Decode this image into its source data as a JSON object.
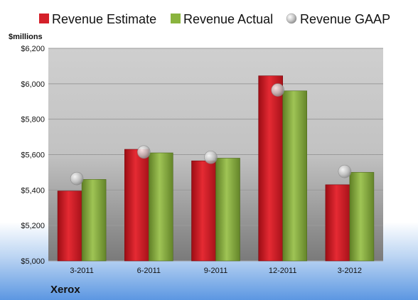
{
  "chart_data": {
    "type": "bar",
    "categories": [
      "3-2011",
      "6-2011",
      "9-2011",
      "12-2011",
      "3-2012"
    ],
    "series": [
      {
        "name": "Revenue Estimate",
        "kind": "bar",
        "color": "#e0202a",
        "values": [
          5395,
          5630,
          5565,
          6045,
          5430
        ]
      },
      {
        "name": "Revenue Actual",
        "kind": "bar",
        "color": "#8ab43e",
        "values": [
          5460,
          5610,
          5580,
          5960,
          5500
        ]
      },
      {
        "name": "Revenue GAAP",
        "kind": "marker",
        "color": "#b8b8b8",
        "values": [
          5465,
          5615,
          5585,
          5965,
          5505
        ]
      }
    ],
    "ylabel": "$millions",
    "ylim": [
      5000,
      6200
    ],
    "yticks": [
      5000,
      5200,
      5400,
      5600,
      5800,
      6000,
      6200
    ],
    "ytick_labels": [
      "$5,000",
      "$5,200",
      "$5,400",
      "$5,600",
      "$5,800",
      "$6,000",
      "$6,200"
    ],
    "grid": true,
    "legend_position": "top"
  },
  "company": "Xerox"
}
